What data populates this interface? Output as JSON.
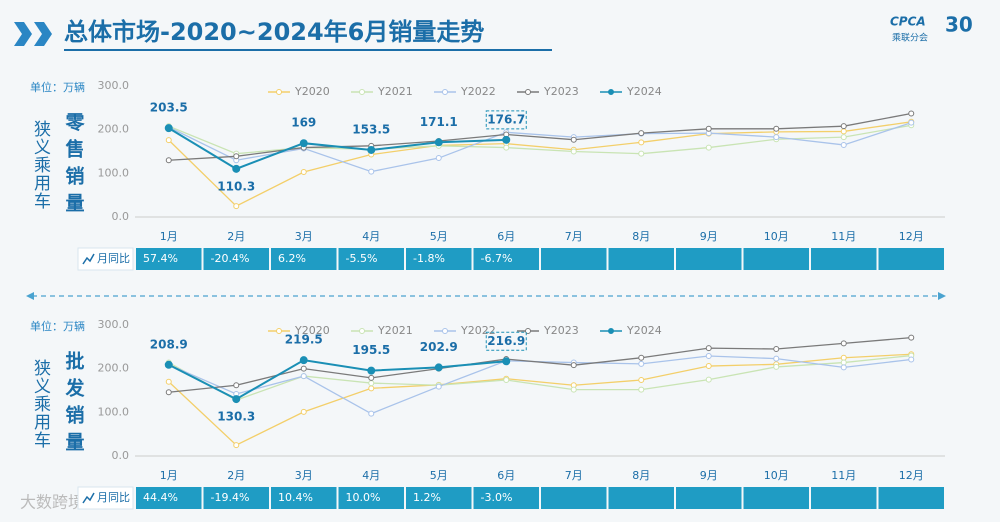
{
  "title": "总体市场-2020~2024年6月销量走势",
  "logo": {
    "brand": "CPCA",
    "sub": "乘联分会",
    "anniversary": "30"
  },
  "watermark": "大数跨境",
  "chart_data": [
    {
      "type": "line",
      "unit": "单位：万辆",
      "segment": "狭义乘用车",
      "panel": "零售销量",
      "categories": [
        "1月",
        "2月",
        "3月",
        "4月",
        "5月",
        "6月",
        "7月",
        "8月",
        "9月",
        "10月",
        "11月",
        "12月"
      ],
      "ylim": [
        0,
        300
      ],
      "yticks": [
        {
          "value": 0,
          "label": "0.0"
        },
        {
          "value": 100,
          "label": "100.0"
        },
        {
          "value": 200,
          "label": "200.0"
        },
        {
          "value": 300,
          "label": "300.0"
        }
      ],
      "series": [
        {
          "name": "Y2020",
          "color": "#f3cf6a",
          "values": [
            176,
            25,
            103,
            143,
            164,
            168,
            154,
            171,
            191,
            195,
            196,
            218
          ]
        },
        {
          "name": "Y2021",
          "color": "#c9e4b4",
          "values": [
            208,
            145,
            159,
            155,
            163,
            159,
            150,
            145,
            159,
            178,
            183,
            210
          ]
        },
        {
          "name": "Y2022",
          "color": "#a9c3ea",
          "values": [
            206,
            130,
            157,
            104,
            135,
            194,
            183,
            191,
            192,
            183,
            165,
            216
          ]
        },
        {
          "name": "Y2023",
          "color": "#7a7a7a",
          "values": [
            130,
            139,
            159,
            163,
            174,
            189,
            177,
            192,
            202,
            202,
            208,
            237
          ]
        },
        {
          "name": "Y2024",
          "color": "#1a8fb5",
          "values": [
            203.5,
            110.3,
            169.0,
            153.5,
            171.1,
            176.7,
            null,
            null,
            null,
            null,
            null,
            null
          ]
        }
      ],
      "yoy": {
        "label": "月同比",
        "values": [
          57.4,
          -20.4,
          6.2,
          -5.5,
          -1.8,
          -6.7
        ],
        "value_labels": [
          "57.4%",
          "-20.4%",
          "6.2%",
          "-5.5%",
          "-1.8%",
          "-6.7%"
        ]
      }
    },
    {
      "type": "line",
      "unit": "单位：万辆",
      "segment": "狭义乘用车",
      "panel": "批发销量",
      "categories": [
        "1月",
        "2月",
        "3月",
        "4月",
        "5月",
        "6月",
        "7月",
        "8月",
        "9月",
        "10月",
        "11月",
        "12月"
      ],
      "ylim": [
        0,
        300
      ],
      "yticks": [
        {
          "value": 0,
          "label": "0.0"
        },
        {
          "value": 100,
          "label": "100.0"
        },
        {
          "value": 200,
          "label": "200.0"
        },
        {
          "value": 300,
          "label": "300.0"
        }
      ],
      "series": [
        {
          "name": "Y2020",
          "color": "#f3cf6a",
          "values": [
            170,
            25,
            101,
            155,
            163,
            177,
            162,
            174,
            206,
            210,
            225,
            233
          ]
        },
        {
          "name": "Y2021",
          "color": "#c9e4b4",
          "values": [
            214,
            128,
            183,
            167,
            162,
            174,
            152,
            152,
            175,
            204,
            214,
            230
          ]
        },
        {
          "name": "Y2022",
          "color": "#a9c3ea",
          "values": [
            209,
            142,
            183,
            97,
            159,
            218,
            214,
            211,
            229,
            223,
            203,
            221
          ]
        },
        {
          "name": "Y2023",
          "color": "#7a7a7a",
          "values": [
            146,
            162,
            200,
            179,
            200,
            222,
            208,
            225,
            247,
            245,
            258,
            271
          ]
        },
        {
          "name": "Y2024",
          "color": "#1a8fb5",
          "values": [
            208.9,
            130.3,
            219.5,
            195.5,
            202.9,
            216.9,
            null,
            null,
            null,
            null,
            null,
            null
          ]
        }
      ],
      "yoy": {
        "label": "月同比",
        "values": [
          44.4,
          -19.4,
          10.4,
          10.0,
          1.2,
          -3.0
        ],
        "value_labels": [
          "44.4%",
          "-19.4%",
          "10.4%",
          "10.0%",
          "1.2%",
          "-3.0%"
        ]
      }
    }
  ]
}
